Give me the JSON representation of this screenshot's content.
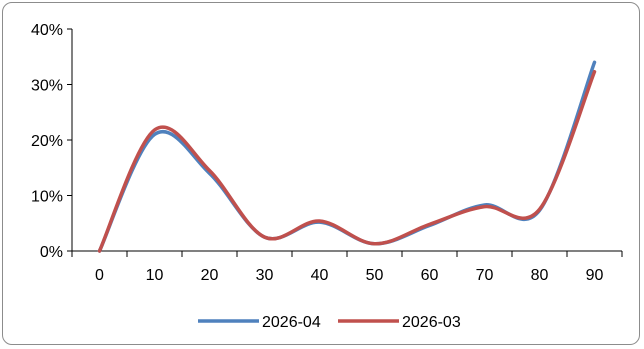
{
  "chart_data": {
    "type": "line",
    "title": "",
    "xlabel": "",
    "ylabel": "",
    "x": [
      0,
      10,
      20,
      30,
      40,
      50,
      60,
      70,
      80,
      90
    ],
    "x_tick_labels": [
      "0",
      "10",
      "20",
      "30",
      "40",
      "50",
      "60",
      "70",
      "80",
      "90"
    ],
    "y_tick_labels": [
      "0%",
      "10%",
      "20%",
      "30%",
      "40%"
    ],
    "y_ticks": [
      0,
      10,
      20,
      30,
      40
    ],
    "ylim": [
      0,
      40
    ],
    "y_unit": "%",
    "grid": false,
    "smooth": true,
    "legend_position": "bottom",
    "series": [
      {
        "name": "2026-04",
        "color": "#4f81bd",
        "values": [
          0,
          21,
          14,
          2.5,
          5.2,
          1.3,
          4.6,
          8.3,
          7.3,
          34
        ]
      },
      {
        "name": "2026-03",
        "color": "#c0504d",
        "values": [
          0,
          21.8,
          14.5,
          2.5,
          5.4,
          1.3,
          4.8,
          8.0,
          7.5,
          32.3
        ]
      }
    ]
  }
}
